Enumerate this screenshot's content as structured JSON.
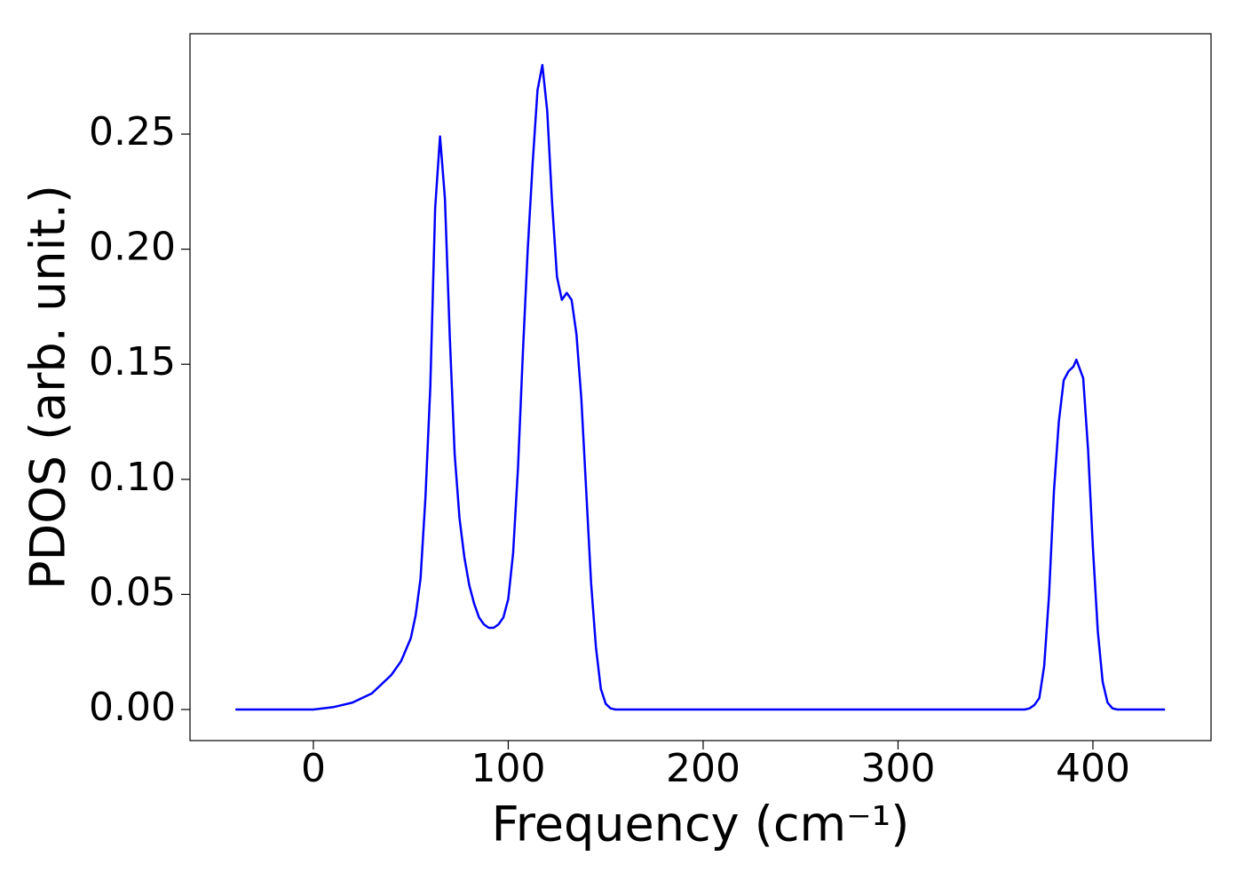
{
  "chart_data": {
    "type": "line",
    "xlabel": "Frequency (cm⁻¹)",
    "ylabel": "PDOS (arb. unit.)",
    "color": "#0000ff",
    "x": [
      -40,
      0,
      10,
      20,
      30,
      40,
      45,
      50,
      52.5,
      55,
      57.5,
      60,
      62.5,
      65,
      67.5,
      70,
      72.5,
      75,
      77.5,
      80,
      82.5,
      85,
      87.5,
      90,
      92.5,
      95,
      97.5,
      100,
      102.5,
      105,
      107.5,
      110,
      112.5,
      115,
      117.5,
      120,
      122.5,
      125,
      127.5,
      130,
      132.5,
      135,
      137.5,
      140,
      142.5,
      145,
      147.5,
      150,
      152.5,
      155,
      365,
      367.5,
      370,
      372.5,
      375,
      377.5,
      380,
      382.5,
      385,
      387.5,
      390,
      391.5,
      395,
      397.5,
      400,
      402.5,
      405,
      407.5,
      410,
      412.5,
      437
    ],
    "values": [
      0,
      0,
      0.001,
      0.003,
      0.007,
      0.015,
      0.021,
      0.031,
      0.041,
      0.057,
      0.092,
      0.14,
      0.218,
      0.249,
      0.222,
      0.162,
      0.111,
      0.083,
      0.066,
      0.054,
      0.046,
      0.04,
      0.037,
      0.0355,
      0.0355,
      0.037,
      0.04,
      0.048,
      0.068,
      0.105,
      0.155,
      0.2,
      0.237,
      0.269,
      0.28,
      0.26,
      0.22,
      0.188,
      0.178,
      0.181,
      0.178,
      0.163,
      0.135,
      0.095,
      0.055,
      0.027,
      0.009,
      0.0025,
      0.0005,
      0,
      0,
      0.0005,
      0.002,
      0.005,
      0.019,
      0.05,
      0.095,
      0.125,
      0.143,
      0.147,
      0.149,
      0.152,
      0.144,
      0.113,
      0.07,
      0.034,
      0.012,
      0.003,
      0.0005,
      0,
      0
    ],
    "xlim": [
      -63.3,
      460.6
    ],
    "ylim": [
      -0.0135,
      0.2936
    ],
    "xticks": [
      0,
      100,
      200,
      300,
      400
    ],
    "yticks": [
      {
        "value": 0,
        "label": "0.00"
      },
      {
        "value": 0.05,
        "label": "0.05"
      },
      {
        "value": 0.1,
        "label": "0.10"
      },
      {
        "value": 0.15,
        "label": "0.15"
      },
      {
        "value": 0.2,
        "label": "0.20"
      },
      {
        "value": 0.25,
        "label": "0.25"
      }
    ]
  }
}
